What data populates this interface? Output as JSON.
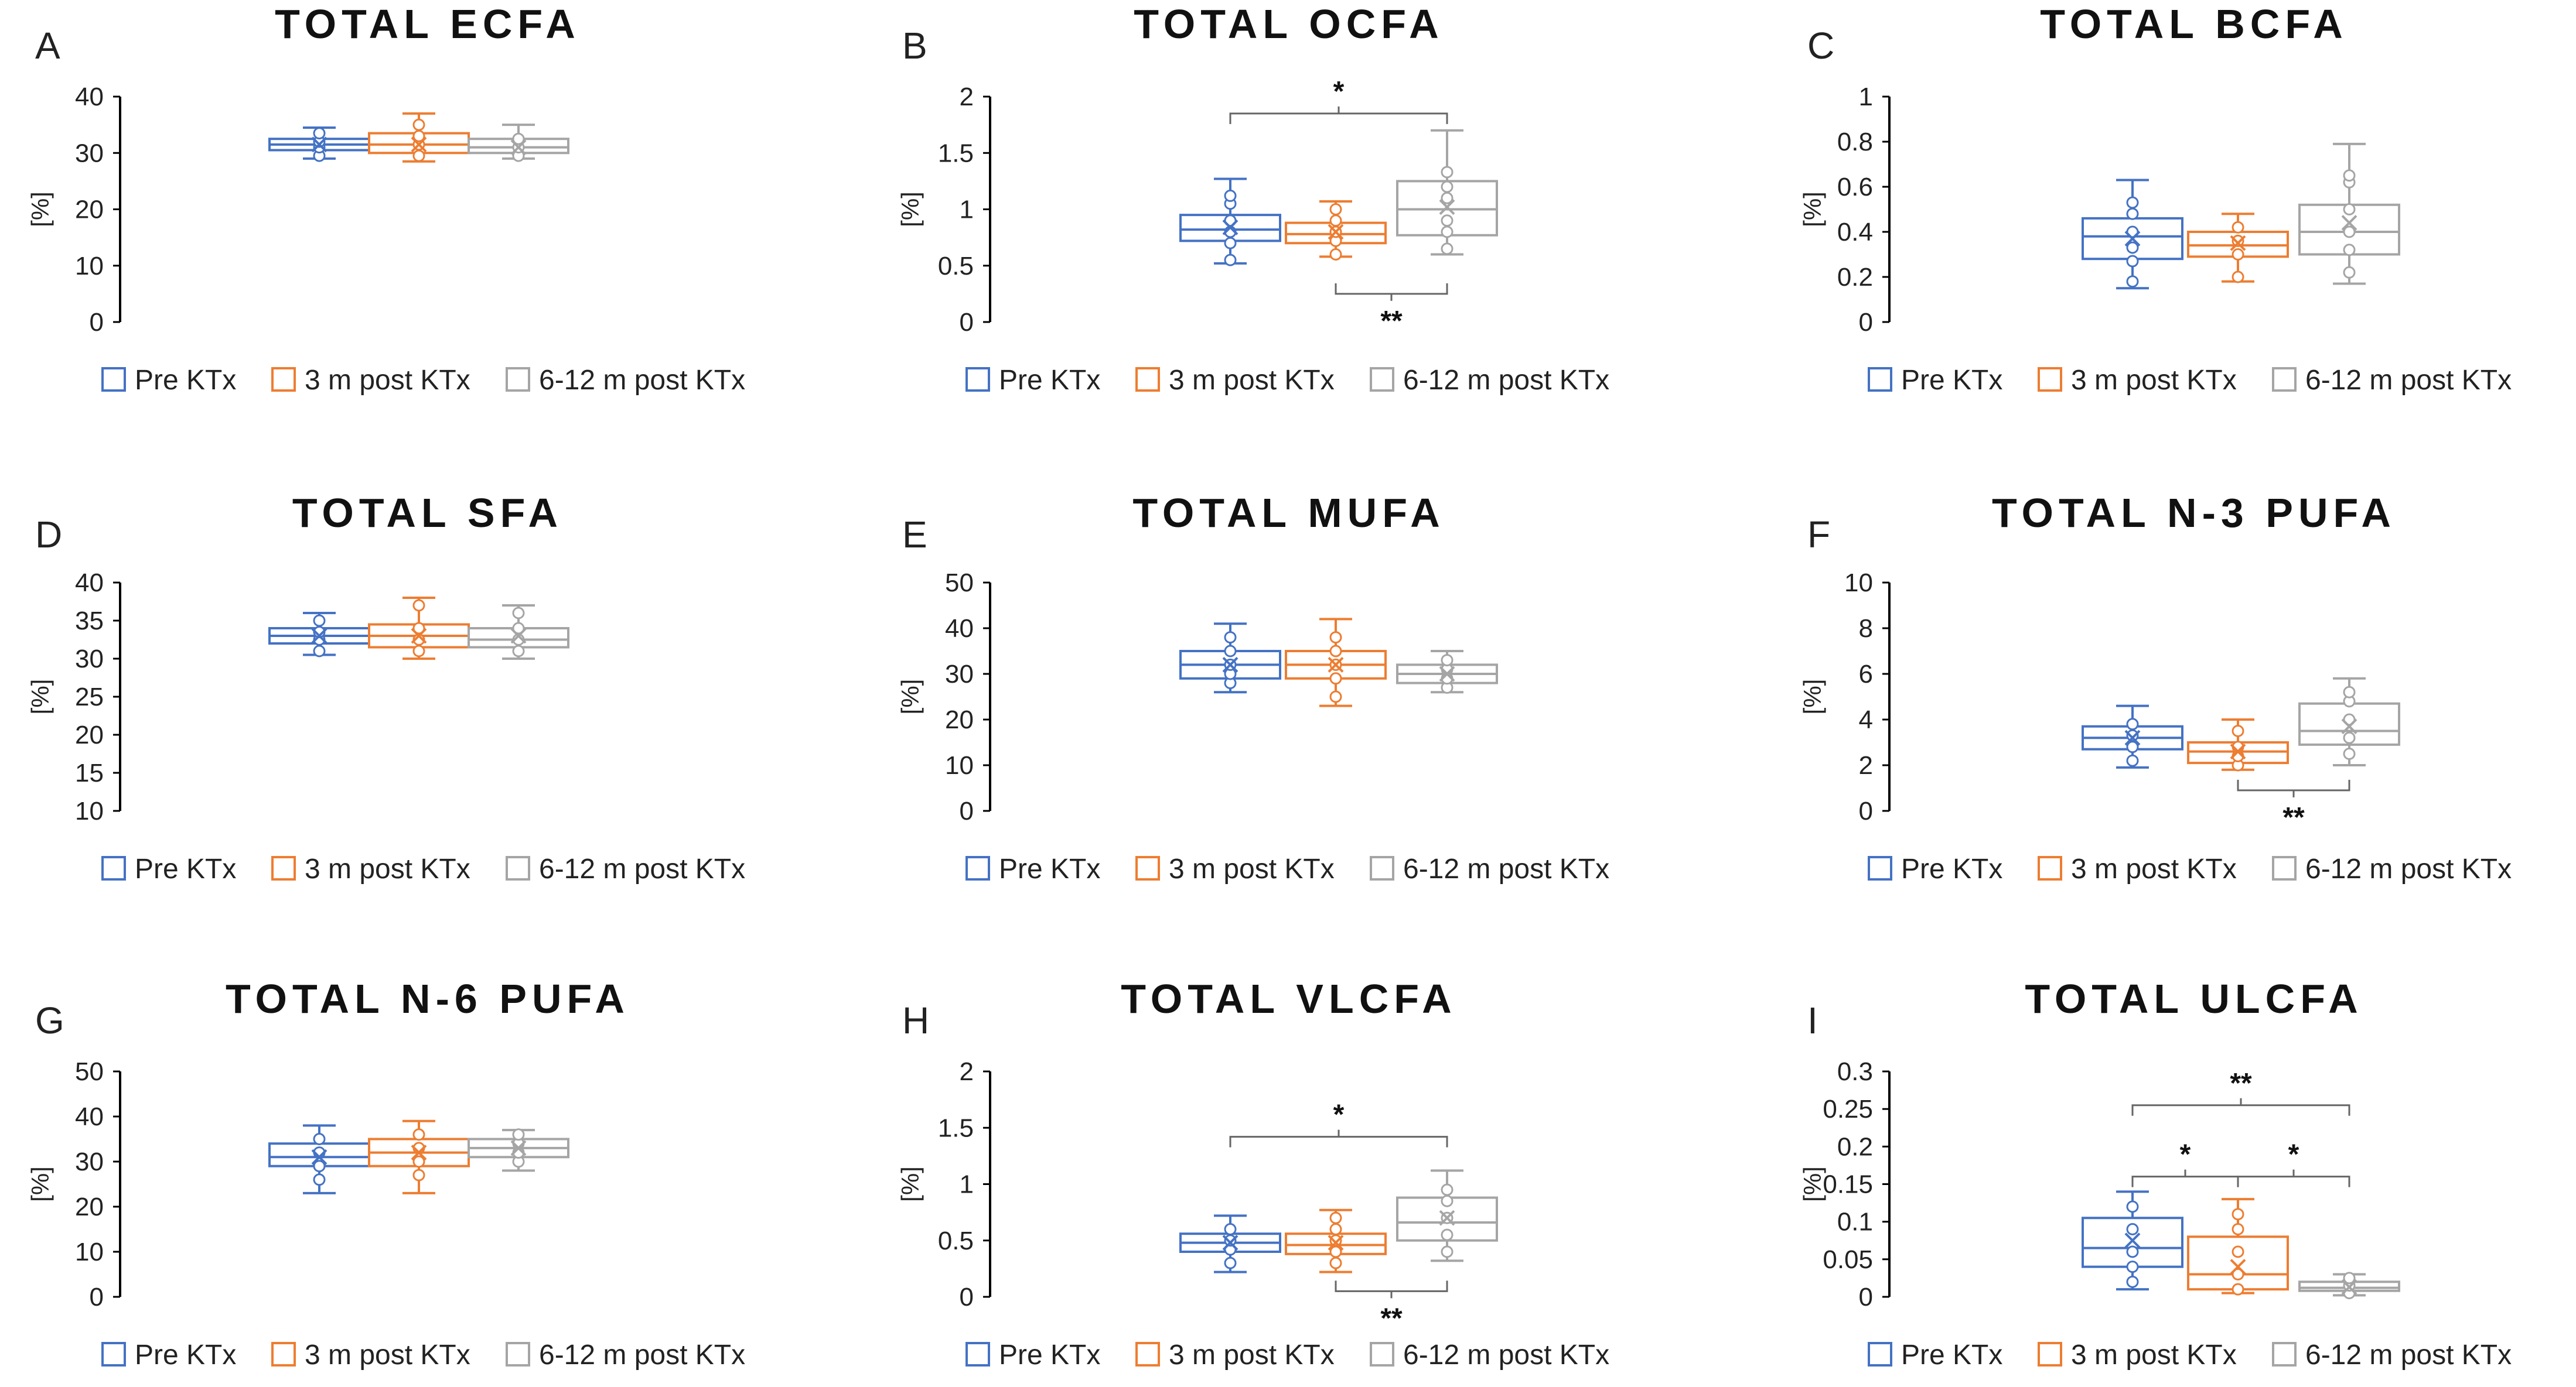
{
  "colors": {
    "pre": "#4472C4",
    "m3": "#ED7D31",
    "m612": "#A5A5A5"
  },
  "legend": [
    "Pre KTx",
    "3 m post KTx",
    "6-12 m post KTx"
  ],
  "chart_data": [
    {
      "letter": "A",
      "title": "TOTAL ECFA",
      "type": "box",
      "ylabel": "[%]",
      "ylim": [
        0,
        40
      ],
      "yticks": [
        "0",
        "10",
        "20",
        "30",
        "40"
      ],
      "series": [
        {
          "name": "Pre KTx",
          "min": 29,
          "q1": 30.5,
          "median": 31.5,
          "q3": 32.5,
          "max": 34.5,
          "mean": 31.5,
          "points": [
            29.5,
            31,
            32,
            33.5
          ]
        },
        {
          "name": "3 m post KTx",
          "min": 28.5,
          "q1": 30,
          "median": 31.5,
          "q3": 33.5,
          "max": 37,
          "mean": 31.5,
          "points": [
            29.5,
            31.5,
            33,
            35
          ]
        },
        {
          "name": "6-12 m post KTx",
          "min": 29,
          "q1": 30,
          "median": 31,
          "q3": 32.5,
          "max": 35,
          "mean": 31,
          "points": [
            29.5,
            31,
            32.5
          ]
        }
      ],
      "brackets": []
    },
    {
      "letter": "B",
      "title": "TOTAL OCFA",
      "type": "box",
      "ylabel": "[%]",
      "ylim": [
        0,
        2
      ],
      "yticks": [
        "0",
        "0.5",
        "1",
        "1.5",
        "2"
      ],
      "series": [
        {
          "name": "Pre KTx",
          "min": 0.52,
          "q1": 0.72,
          "median": 0.82,
          "q3": 0.95,
          "max": 1.27,
          "mean": 0.84,
          "points": [
            0.55,
            0.7,
            0.8,
            0.9,
            1.05,
            1.12
          ]
        },
        {
          "name": "3 m post KTx",
          "min": 0.58,
          "q1": 0.7,
          "median": 0.78,
          "q3": 0.88,
          "max": 1.07,
          "mean": 0.8,
          "points": [
            0.6,
            0.72,
            0.8,
            0.9,
            1.0
          ]
        },
        {
          "name": "6-12 m post KTx",
          "min": 0.6,
          "q1": 0.77,
          "median": 1.0,
          "q3": 1.25,
          "max": 1.7,
          "mean": 1.02,
          "points": [
            0.65,
            0.8,
            0.9,
            1.1,
            1.2,
            1.33
          ]
        }
      ],
      "brackets": [
        {
          "from": 0,
          "to": 2,
          "y": 1.85,
          "dir": "up",
          "label": "*"
        },
        {
          "from": 1,
          "to": 2,
          "y": 0.25,
          "dir": "down",
          "label": "**"
        }
      ]
    },
    {
      "letter": "C",
      "title": "TOTAL BCFA",
      "type": "box",
      "ylabel": "[%]",
      "ylim": [
        0,
        1
      ],
      "yticks": [
        "0",
        "0.2",
        "0.4",
        "0.6",
        "0.8",
        "1"
      ],
      "series": [
        {
          "name": "Pre KTx",
          "min": 0.15,
          "q1": 0.28,
          "median": 0.38,
          "q3": 0.46,
          "max": 0.63,
          "mean": 0.37,
          "points": [
            0.18,
            0.27,
            0.33,
            0.4,
            0.48,
            0.53
          ]
        },
        {
          "name": "3 m post KTx",
          "min": 0.18,
          "q1": 0.29,
          "median": 0.34,
          "q3": 0.4,
          "max": 0.48,
          "mean": 0.35,
          "points": [
            0.2,
            0.3,
            0.36,
            0.42
          ]
        },
        {
          "name": "6-12 m post KTx",
          "min": 0.17,
          "q1": 0.3,
          "median": 0.4,
          "q3": 0.52,
          "max": 0.79,
          "mean": 0.44,
          "points": [
            0.22,
            0.32,
            0.4,
            0.5,
            0.62,
            0.65
          ]
        }
      ],
      "brackets": []
    },
    {
      "letter": "D",
      "title": "TOTAL SFA",
      "type": "box",
      "ylabel": "[%]",
      "ylim": [
        10,
        40
      ],
      "yticks": [
        "10",
        "15",
        "20",
        "25",
        "30",
        "35",
        "40"
      ],
      "series": [
        {
          "name": "Pre KTx",
          "min": 30.5,
          "q1": 32,
          "median": 33,
          "q3": 34,
          "max": 36,
          "mean": 33,
          "points": [
            31,
            32.5,
            33.5,
            35
          ]
        },
        {
          "name": "3 m post KTx",
          "min": 30,
          "q1": 31.5,
          "median": 33,
          "q3": 34.5,
          "max": 38,
          "mean": 33,
          "points": [
            31,
            32.5,
            34,
            37
          ]
        },
        {
          "name": "6-12 m post KTx",
          "min": 30,
          "q1": 31.5,
          "median": 32.5,
          "q3": 34,
          "max": 37,
          "mean": 33,
          "points": [
            31,
            32.5,
            34,
            36
          ]
        }
      ],
      "brackets": []
    },
    {
      "letter": "E",
      "title": "TOTAL MUFA",
      "type": "box",
      "ylabel": "[%]",
      "ylim": [
        0,
        50
      ],
      "yticks": [
        "0",
        "10",
        "20",
        "30",
        "40",
        "50"
      ],
      "series": [
        {
          "name": "Pre KTx",
          "min": 26,
          "q1": 29,
          "median": 32,
          "q3": 35,
          "max": 41,
          "mean": 32,
          "points": [
            28,
            30,
            32,
            35,
            38
          ]
        },
        {
          "name": "3 m post KTx",
          "min": 23,
          "q1": 29,
          "median": 32,
          "q3": 35,
          "max": 42,
          "mean": 32,
          "points": [
            25,
            29,
            32,
            35,
            38
          ]
        },
        {
          "name": "6-12 m post KTx",
          "min": 26,
          "q1": 28,
          "median": 30,
          "q3": 32,
          "max": 35,
          "mean": 30,
          "points": [
            27,
            29,
            31,
            33
          ]
        }
      ],
      "brackets": []
    },
    {
      "letter": "F",
      "title": "TOTAL N-3 PUFA",
      "type": "box",
      "ylabel": "[%]",
      "ylim": [
        0,
        10
      ],
      "yticks": [
        "0",
        "2",
        "4",
        "6",
        "8",
        "10"
      ],
      "series": [
        {
          "name": "Pre KTx",
          "min": 1.9,
          "q1": 2.7,
          "median": 3.2,
          "q3": 3.7,
          "max": 4.6,
          "mean": 3.2,
          "points": [
            2.2,
            2.8,
            3.3,
            3.8
          ]
        },
        {
          "name": "3 m post KTx",
          "min": 1.8,
          "q1": 2.1,
          "median": 2.6,
          "q3": 3.0,
          "max": 4.0,
          "mean": 2.6,
          "points": [
            2.0,
            2.4,
            2.8,
            3.5
          ]
        },
        {
          "name": "6-12 m post KTx",
          "min": 2.0,
          "q1": 2.9,
          "median": 3.5,
          "q3": 4.7,
          "max": 5.8,
          "mean": 3.7,
          "points": [
            2.5,
            3.2,
            4.0,
            4.8,
            5.2
          ]
        }
      ],
      "brackets": [
        {
          "from": 1,
          "to": 2,
          "y": 0.9,
          "dir": "down",
          "label": "**"
        }
      ]
    },
    {
      "letter": "G",
      "title": "TOTAL N-6 PUFA",
      "type": "box",
      "ylabel": "[%]",
      "ylim": [
        0,
        50
      ],
      "yticks": [
        "0",
        "10",
        "20",
        "30",
        "40",
        "50"
      ],
      "series": [
        {
          "name": "Pre KTx",
          "min": 23,
          "q1": 29,
          "median": 31,
          "q3": 34,
          "max": 38,
          "mean": 31,
          "points": [
            26,
            29,
            32,
            35
          ]
        },
        {
          "name": "3 m post KTx",
          "min": 23,
          "q1": 29,
          "median": 32,
          "q3": 35,
          "max": 39,
          "mean": 32,
          "points": [
            27,
            30,
            33,
            36
          ]
        },
        {
          "name": "6-12 m post KTx",
          "min": 28,
          "q1": 31,
          "median": 33,
          "q3": 35,
          "max": 37,
          "mean": 33,
          "points": [
            30,
            32,
            34,
            36
          ]
        }
      ],
      "brackets": []
    },
    {
      "letter": "H",
      "title": "TOTAL VLCFA",
      "type": "box",
      "ylabel": "[%]",
      "ylim": [
        0,
        2
      ],
      "yticks": [
        "0",
        "0.5",
        "1",
        "1.5",
        "2"
      ],
      "series": [
        {
          "name": "Pre KTx",
          "min": 0.22,
          "q1": 0.4,
          "median": 0.48,
          "q3": 0.56,
          "max": 0.72,
          "mean": 0.48,
          "points": [
            0.3,
            0.42,
            0.5,
            0.6
          ]
        },
        {
          "name": "3 m post KTx",
          "min": 0.22,
          "q1": 0.38,
          "median": 0.46,
          "q3": 0.56,
          "max": 0.77,
          "mean": 0.48,
          "points": [
            0.3,
            0.4,
            0.5,
            0.6,
            0.7
          ]
        },
        {
          "name": "6-12 m post KTx",
          "min": 0.32,
          "q1": 0.5,
          "median": 0.66,
          "q3": 0.88,
          "max": 1.12,
          "mean": 0.7,
          "points": [
            0.4,
            0.55,
            0.7,
            0.85,
            0.95
          ]
        }
      ],
      "brackets": [
        {
          "from": 0,
          "to": 2,
          "y": 1.42,
          "dir": "up",
          "label": "*"
        },
        {
          "from": 1,
          "to": 2,
          "y": 0.05,
          "dir": "down",
          "label": "**"
        }
      ]
    },
    {
      "letter": "I",
      "title": "TOTAL ULCFA",
      "type": "box",
      "ylabel": "[%]",
      "ylim": [
        0,
        0.3
      ],
      "yticks": [
        "0",
        "0.05",
        "0.1",
        "0.15",
        "0.2",
        "0.25",
        "0.3"
      ],
      "series": [
        {
          "name": "Pre KTx",
          "min": 0.01,
          "q1": 0.04,
          "median": 0.065,
          "q3": 0.105,
          "max": 0.14,
          "mean": 0.075,
          "points": [
            0.02,
            0.04,
            0.06,
            0.09,
            0.12
          ]
        },
        {
          "name": "3 m post KTx",
          "min": 0.005,
          "q1": 0.01,
          "median": 0.03,
          "q3": 0.08,
          "max": 0.13,
          "mean": 0.04,
          "points": [
            0.01,
            0.03,
            0.06,
            0.09,
            0.11
          ]
        },
        {
          "name": "6-12 m post KTx",
          "min": 0.002,
          "q1": 0.008,
          "median": 0.012,
          "q3": 0.02,
          "max": 0.03,
          "mean": 0.013,
          "points": [
            0.005,
            0.015,
            0.025
          ]
        }
      ],
      "brackets": [
        {
          "from": 0,
          "to": 2,
          "y": 0.255,
          "dir": "up",
          "label": "**"
        },
        {
          "from": 0,
          "to": 1,
          "y": 0.16,
          "dir": "up",
          "label": "*"
        },
        {
          "from": 1,
          "to": 2,
          "y": 0.16,
          "dir": "up",
          "label": "*"
        }
      ]
    }
  ]
}
